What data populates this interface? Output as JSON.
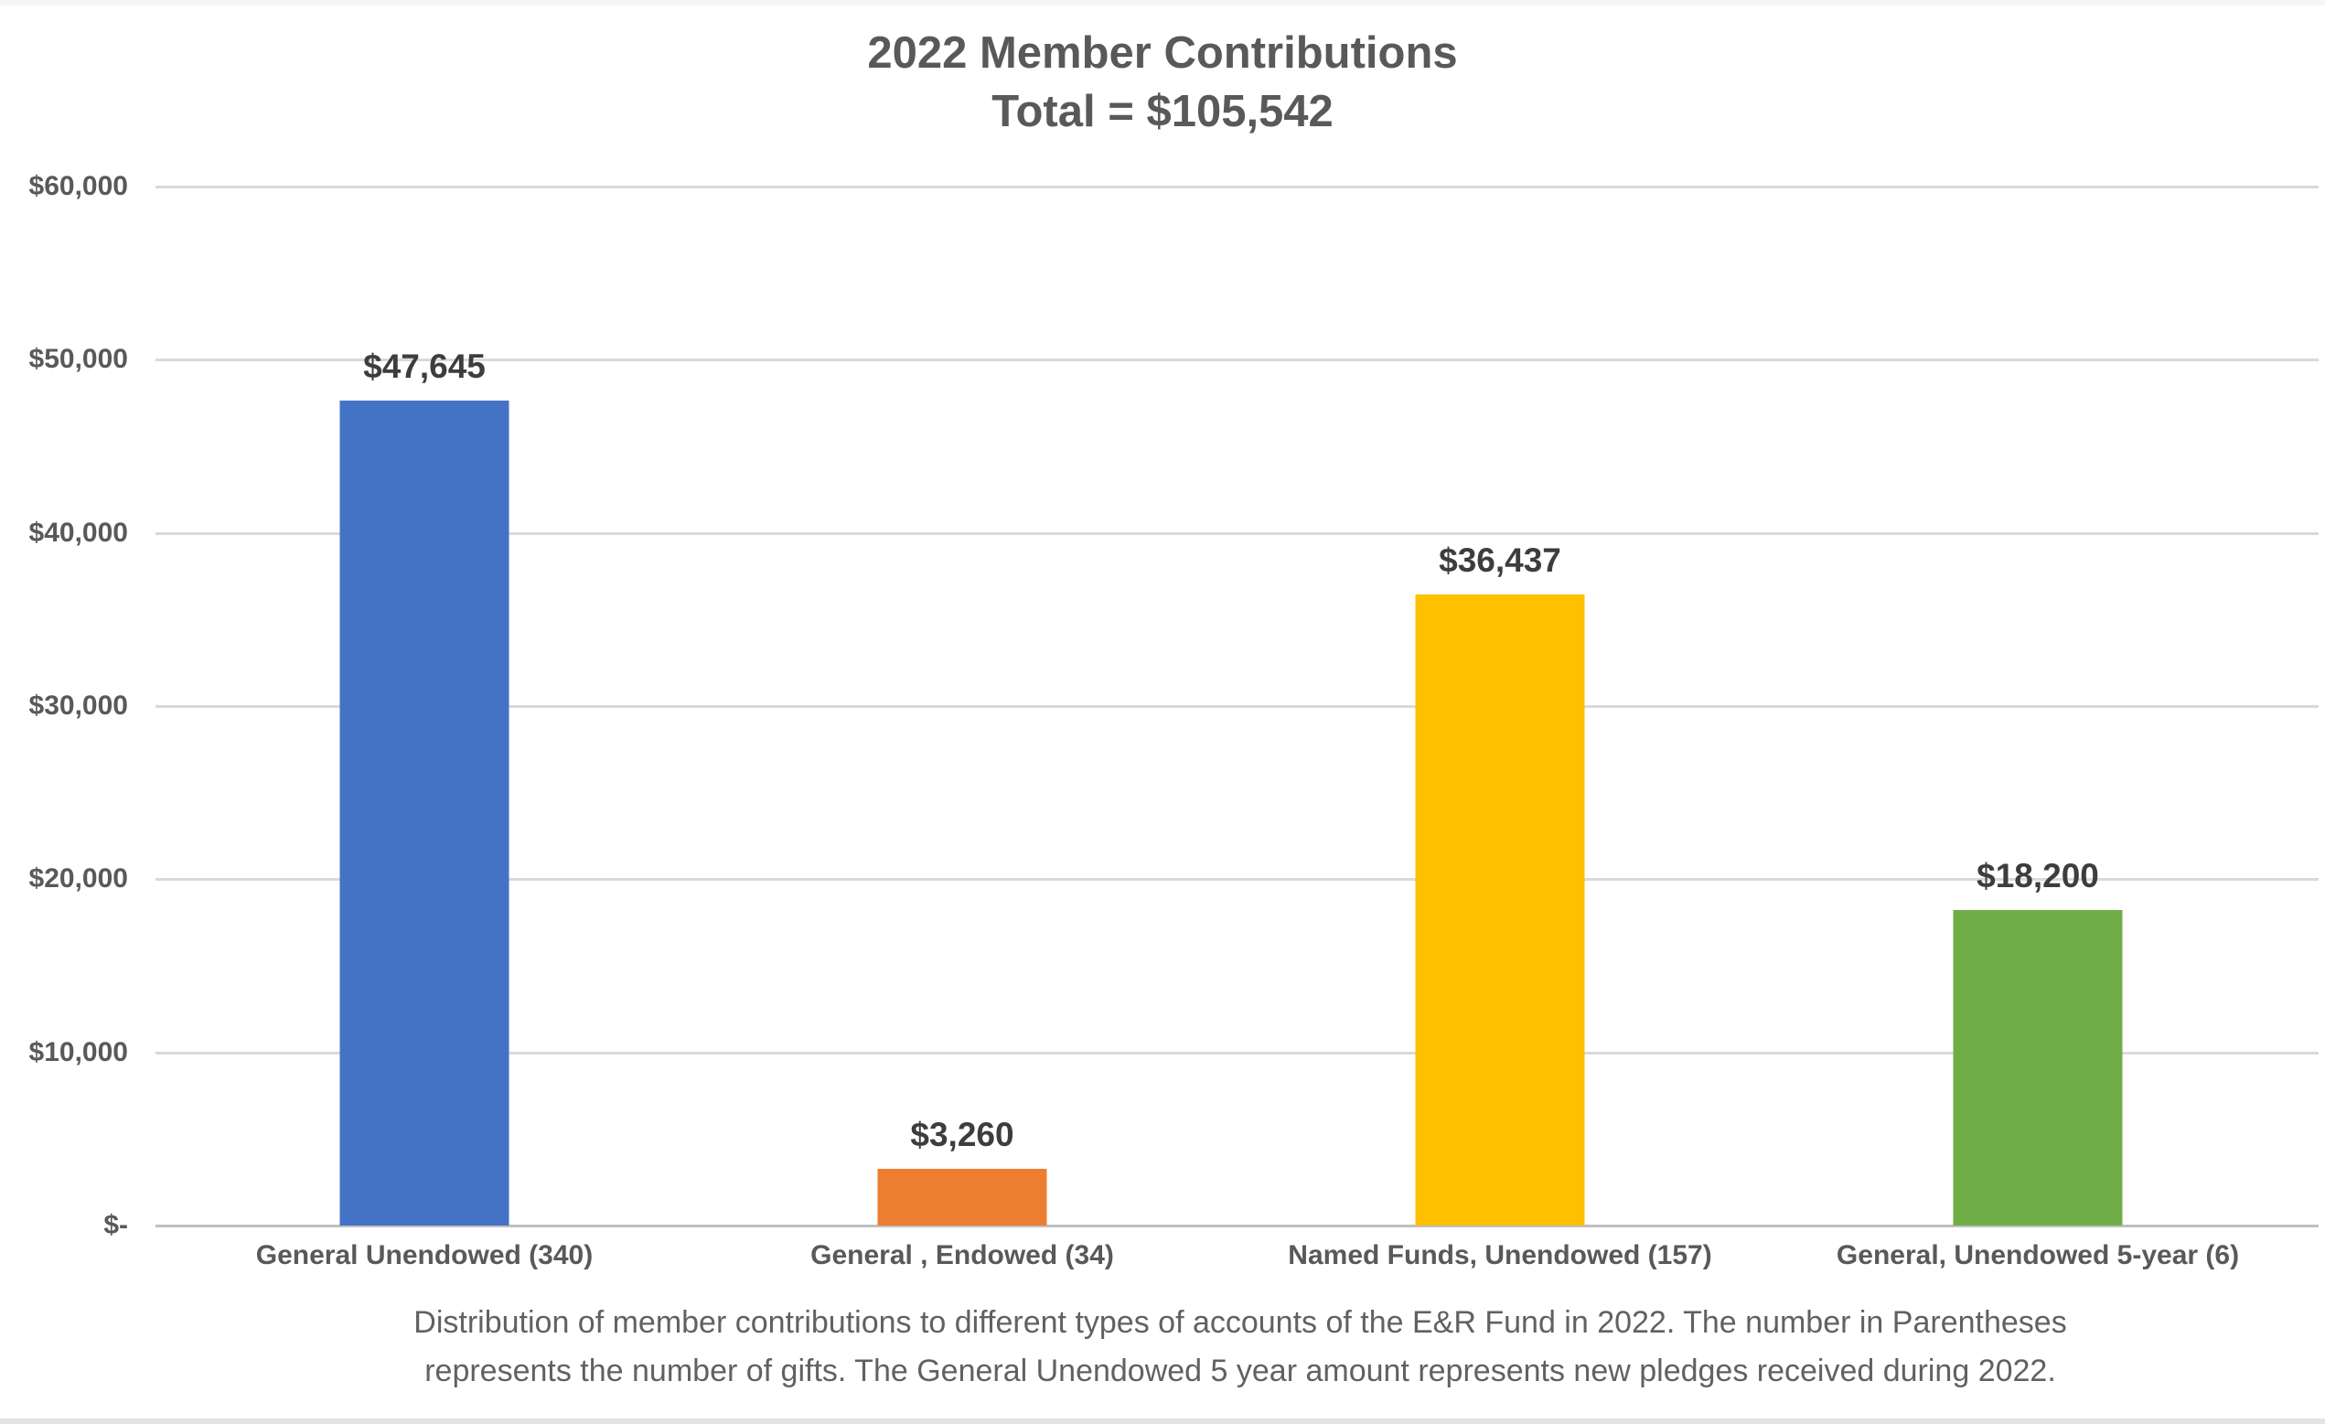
{
  "chart_data": {
    "type": "bar",
    "title": "2022 Member Contributions",
    "subtitle": "Total = $105,542",
    "categories": [
      "General Unendowed (340)",
      "General , Endowed (34)",
      "Named Funds, Unendowed (157)",
      "General, Unendowed 5-year (6)"
    ],
    "values": [
      47645,
      3260,
      36437,
      18200
    ],
    "value_labels": [
      "$47,645",
      "$3,260",
      "$36,437",
      "$18,200"
    ],
    "bar_colors": [
      "#4472C4",
      "#ED7D31",
      "#FFC000",
      "#70AD47"
    ],
    "xlabel": "",
    "ylabel": "",
    "ylim": [
      0,
      60000
    ],
    "yticks": [
      {
        "value": 60000,
        "label": "$60,000"
      },
      {
        "value": 50000,
        "label": "$50,000"
      },
      {
        "value": 40000,
        "label": "$40,000"
      },
      {
        "value": 30000,
        "label": "$30,000"
      },
      {
        "value": 20000,
        "label": "$20,000"
      },
      {
        "value": 10000,
        "label": "$10,000"
      },
      {
        "value": 0,
        "label": "$-"
      }
    ],
    "grid": true,
    "legend": "none",
    "grid_color": "#D9D9D9",
    "baseline_color": "#BFBFBF",
    "title_color": "#595959",
    "label_color": "#3D3D3D",
    "caption_lines": [
      "Distribution of member contributions to different types of accounts of the E&R Fund in 2022. The number in Parentheses",
      "represents the number of gifts. The General Unendowed 5 year amount represents new pledges received during 2022."
    ]
  }
}
